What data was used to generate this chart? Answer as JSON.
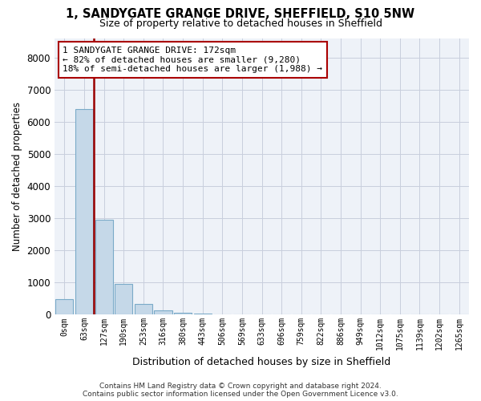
{
  "title1": "1, SANDYGATE GRANGE DRIVE, SHEFFIELD, S10 5NW",
  "title2": "Size of property relative to detached houses in Sheffield",
  "xlabel": "Distribution of detached houses by size in Sheffield",
  "ylabel": "Number of detached properties",
  "bar_color": "#c5d8e8",
  "bar_edge_color": "#7aaac8",
  "vline_color": "#990000",
  "vline_x": 1.5,
  "categories": [
    "0sqm",
    "63sqm",
    "127sqm",
    "190sqm",
    "253sqm",
    "316sqm",
    "380sqm",
    "443sqm",
    "506sqm",
    "569sqm",
    "633sqm",
    "696sqm",
    "759sqm",
    "822sqm",
    "886sqm",
    "949sqm",
    "1012sqm",
    "1075sqm",
    "1139sqm",
    "1202sqm",
    "1265sqm"
  ],
  "values": [
    480,
    6400,
    2940,
    960,
    340,
    120,
    60,
    25,
    12,
    8,
    5,
    4,
    3,
    2,
    2,
    1,
    1,
    1,
    0,
    0,
    0
  ],
  "ylim": [
    0,
    8600
  ],
  "yticks": [
    0,
    1000,
    2000,
    3000,
    4000,
    5000,
    6000,
    7000,
    8000
  ],
  "annotation_line1": "1 SANDYGATE GRANGE DRIVE: 172sqm",
  "annotation_line2": "← 82% of detached houses are smaller (9,280)",
  "annotation_line3": "18% of semi-detached houses are larger (1,988) →",
  "footer1": "Contains HM Land Registry data © Crown copyright and database right 2024.",
  "footer2": "Contains public sector information licensed under the Open Government Licence v3.0.",
  "bg_color": "#eef2f8",
  "grid_color": "#c8cedd"
}
